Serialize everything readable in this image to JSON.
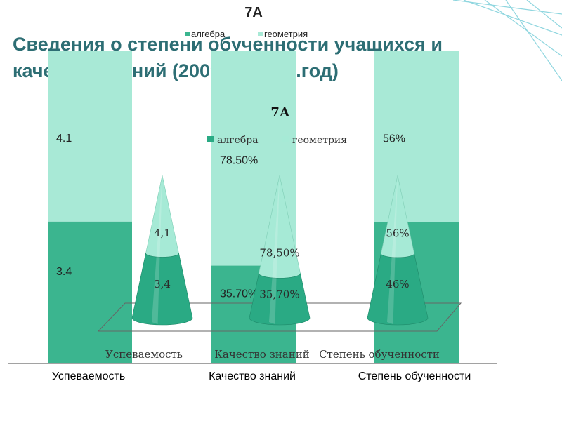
{
  "slide": {
    "title": "Сведения о степени обученности учащихся и качестве знаний (2009-2010 уч.год)"
  },
  "colors": {
    "algebra": "#2aaa84",
    "geometry": "#a6ead6",
    "back_algebra": "#3bb58f",
    "back_geometry": "#a8e9d6",
    "title": "#2d6e74"
  },
  "chart_data": [
    {
      "type": "bar",
      "stacked": true,
      "percent_stacked": true,
      "title": "7А",
      "legend": [
        "алгебра",
        "геометрия"
      ],
      "legend_position": "top",
      "categories": [
        "Успеваемость",
        "Качество знаний",
        "Степень обученности"
      ],
      "series": [
        {
          "name": "алгебра",
          "values": [
            3.4,
            35.7,
            46
          ],
          "labels": [
            "3.4",
            "35.70%",
            "46%"
          ]
        },
        {
          "name": "геометрия",
          "values": [
            4.1,
            78.5,
            56
          ],
          "labels": [
            "4.1",
            "78.50%",
            "56%"
          ]
        }
      ],
      "grid": false
    },
    {
      "type": "cone",
      "title": "7А",
      "legend": [
        "алгебра",
        "геометрия"
      ],
      "legend_position": "top",
      "categories": [
        "Успеваемость",
        "Качество знаний",
        "Степень обученности"
      ],
      "series": [
        {
          "name": "алгебра",
          "values": [
            3.4,
            35.7,
            46
          ],
          "labels": [
            "3,4",
            "35,70%",
            "46%"
          ]
        },
        {
          "name": "геометрия",
          "values": [
            4.1,
            78.5,
            56
          ],
          "labels": [
            "4,1",
            "78,50%",
            "56%"
          ]
        }
      ],
      "grid": false
    }
  ]
}
